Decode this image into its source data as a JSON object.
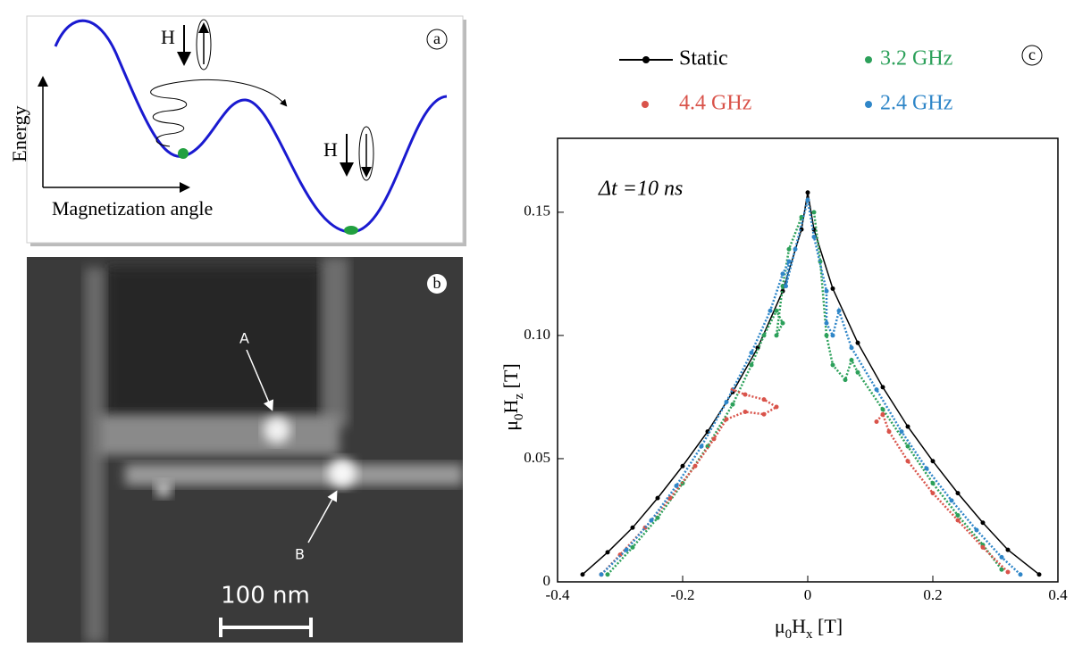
{
  "panel_a": {
    "label": "a",
    "y_axis": "Energy",
    "x_axis": "Magnetization angle",
    "field_1": "H",
    "field_2": "H"
  },
  "panel_b": {
    "label": "b",
    "marker_a": "A",
    "marker_b": "B",
    "scale": "100 nm"
  },
  "chart_data": {
    "type": "scatter",
    "panel_label": "c",
    "annotation": "Δt =10 ns",
    "xlabel": [
      "μ",
      "0",
      "H",
      "x",
      " [T]"
    ],
    "ylabel": [
      "μ",
      "0",
      "H",
      "z",
      " [T]"
    ],
    "xlim": [
      -0.4,
      0.4
    ],
    "xticks": [
      -0.4,
      -0.2,
      0,
      0.2,
      0.4
    ],
    "ylim": [
      0,
      0.18
    ],
    "yticks": [
      0,
      0.05,
      {
        "value": 0.1,
        "label": "0.10"
      },
      0.15
    ],
    "series": [
      {
        "name": "Static",
        "color": "#000000",
        "x": [
          -0.36,
          -0.32,
          -0.28,
          -0.24,
          -0.2,
          -0.16,
          -0.12,
          -0.08,
          -0.04,
          -0.01,
          0,
          0.01,
          0.04,
          0.08,
          0.12,
          0.16,
          0.2,
          0.24,
          0.28,
          0.32,
          0.37
        ],
        "values": [
          0.003,
          0.012,
          0.022,
          0.034,
          0.047,
          0.061,
          0.077,
          0.095,
          0.118,
          0.143,
          0.158,
          0.143,
          0.119,
          0.097,
          0.079,
          0.063,
          0.049,
          0.036,
          0.024,
          0.013,
          0.003
        ]
      },
      {
        "name": "3.2 GHz",
        "color": "#2ca05a",
        "x": [
          -0.32,
          -0.28,
          -0.24,
          -0.2,
          -0.16,
          -0.12,
          -0.09,
          -0.07,
          -0.05,
          -0.04,
          -0.05,
          -0.04,
          -0.03,
          -0.01,
          null,
          0.01,
          0.02,
          0.03,
          0.04,
          0.06,
          0.07,
          0.08,
          0.12,
          0.16,
          0.2,
          0.24,
          0.28,
          0.31
        ],
        "values": [
          0.003,
          0.014,
          0.026,
          0.04,
          0.055,
          0.072,
          0.088,
          0.1,
          0.11,
          0.105,
          0.1,
          0.12,
          0.135,
          0.148,
          null,
          0.15,
          0.13,
          0.1,
          0.088,
          0.082,
          0.09,
          0.085,
          0.07,
          0.055,
          0.04,
          0.027,
          0.015,
          0.005
        ]
      },
      {
        "name": "4.4 GHz",
        "color": "#d9534a",
        "x": [
          -0.33,
          -0.3,
          -0.26,
          -0.22,
          -0.18,
          -0.15,
          -0.13,
          -0.1,
          -0.07,
          -0.05,
          -0.07,
          -0.1,
          -0.12,
          null,
          0.11,
          0.12,
          0.13,
          0.16,
          0.2,
          0.24,
          0.28,
          0.32
        ],
        "values": [
          0.003,
          0.011,
          0.022,
          0.034,
          0.047,
          0.058,
          0.066,
          0.069,
          0.068,
          0.071,
          0.074,
          0.076,
          0.078,
          null,
          0.065,
          0.068,
          0.061,
          0.049,
          0.036,
          0.025,
          0.014,
          0.004
        ]
      },
      {
        "name": "2.4 GHz",
        "color": "#2f86c8",
        "x": [
          -0.33,
          -0.29,
          -0.25,
          -0.21,
          -0.17,
          -0.13,
          -0.09,
          -0.06,
          -0.04,
          -0.03,
          -0.035,
          -0.02,
          0,
          0.01,
          0.03,
          0.03,
          0.04,
          0.05,
          0.07,
          0.11,
          0.15,
          0.19,
          0.23,
          0.27,
          0.31,
          0.34
        ],
        "values": [
          0.003,
          0.013,
          0.025,
          0.039,
          0.055,
          0.073,
          0.093,
          0.11,
          0.125,
          0.13,
          0.12,
          0.135,
          0.155,
          0.14,
          0.118,
          0.105,
          0.1,
          0.11,
          0.095,
          0.078,
          0.061,
          0.046,
          0.033,
          0.021,
          0.01,
          0.003
        ]
      }
    ]
  }
}
